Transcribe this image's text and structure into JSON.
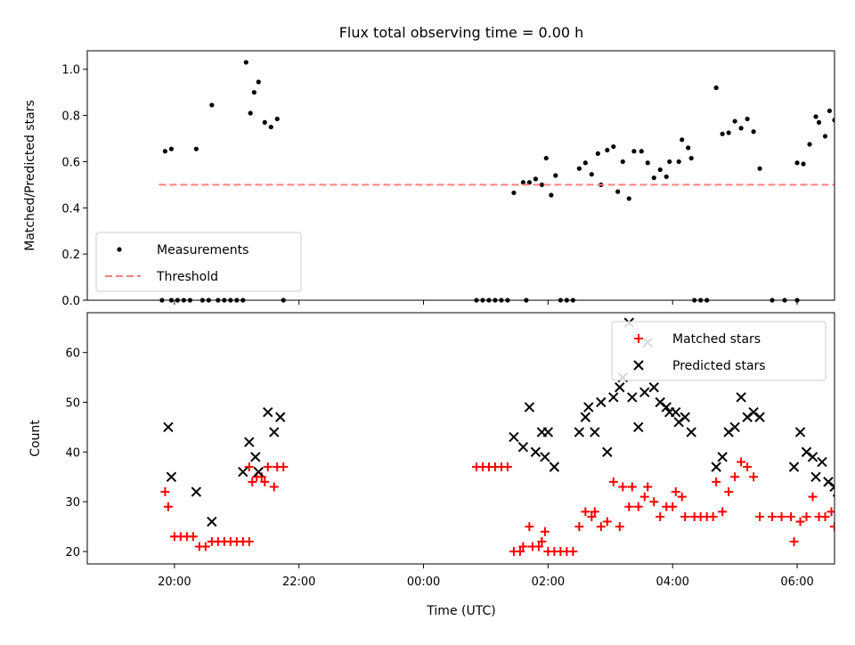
{
  "chart_data": {
    "title": "Flux total observing time = 0.00 h",
    "xlabel": "Time (UTC)",
    "x_ticks": [
      "20:00",
      "22:00",
      "00:00",
      "02:00",
      "04:00",
      "06:00"
    ],
    "x_tick_hours": [
      20,
      22,
      24,
      26,
      28,
      30
    ],
    "xlim_hours": [
      18.6,
      30.6
    ],
    "panels": [
      {
        "type": "scatter",
        "ylabel": "Matched/Predicted stars",
        "ylim": [
          0,
          1.08
        ],
        "y_ticks": [
          "0.0",
          "0.2",
          "0.4",
          "0.6",
          "0.8",
          "1.0"
        ],
        "y_tick_values": [
          0,
          0.2,
          0.4,
          0.6,
          0.8,
          1.0
        ],
        "legend_position": "lower-left",
        "series": [
          {
            "name": "Measurements",
            "color": "#000000",
            "marker": "dot",
            "points": [
              [
                19.85,
                0.645
              ],
              [
                19.95,
                0.655
              ],
              [
                20.35,
                0.655
              ],
              [
                20.6,
                0.845
              ],
              [
                21.15,
                1.03
              ],
              [
                21.22,
                0.81
              ],
              [
                21.28,
                0.9
              ],
              [
                21.35,
                0.945
              ],
              [
                21.45,
                0.77
              ],
              [
                21.55,
                0.75
              ],
              [
                21.65,
                0.785
              ],
              [
                19.8,
                0.0
              ],
              [
                19.95,
                0.0
              ],
              [
                20.05,
                0.0
              ],
              [
                20.15,
                0.0
              ],
              [
                20.25,
                0.0
              ],
              [
                20.45,
                0.0
              ],
              [
                20.55,
                0.0
              ],
              [
                20.7,
                0.0
              ],
              [
                20.8,
                0.0
              ],
              [
                20.9,
                0.0
              ],
              [
                21.0,
                0.0
              ],
              [
                21.1,
                0.0
              ],
              [
                21.75,
                0.0
              ],
              [
                24.85,
                0.0
              ],
              [
                24.95,
                0.0
              ],
              [
                25.05,
                0.0
              ],
              [
                25.15,
                0.0
              ],
              [
                25.25,
                0.0
              ],
              [
                25.35,
                0.0
              ],
              [
                25.65,
                0.0
              ],
              [
                25.45,
                0.465
              ],
              [
                25.6,
                0.51
              ],
              [
                25.7,
                0.51
              ],
              [
                25.8,
                0.525
              ],
              [
                25.9,
                0.5
              ],
              [
                25.97,
                0.615
              ],
              [
                26.05,
                0.455
              ],
              [
                26.12,
                0.54
              ],
              [
                26.2,
                0.0
              ],
              [
                26.3,
                0.0
              ],
              [
                26.4,
                0.0
              ],
              [
                26.5,
                0.57
              ],
              [
                26.6,
                0.595
              ],
              [
                26.7,
                0.545
              ],
              [
                26.8,
                0.635
              ],
              [
                26.85,
                0.5
              ],
              [
                26.95,
                0.65
              ],
              [
                27.05,
                0.665
              ],
              [
                27.12,
                0.47
              ],
              [
                27.2,
                0.6
              ],
              [
                27.3,
                0.44
              ],
              [
                27.38,
                0.645
              ],
              [
                27.5,
                0.645
              ],
              [
                27.6,
                0.595
              ],
              [
                27.7,
                0.53
              ],
              [
                27.8,
                0.565
              ],
              [
                27.9,
                0.535
              ],
              [
                27.95,
                0.6
              ],
              [
                28.1,
                0.6
              ],
              [
                28.15,
                0.695
              ],
              [
                28.25,
                0.66
              ],
              [
                28.3,
                0.615
              ],
              [
                28.35,
                0.0
              ],
              [
                28.45,
                0.0
              ],
              [
                28.55,
                0.0
              ],
              [
                28.7,
                0.92
              ],
              [
                28.8,
                0.72
              ],
              [
                28.9,
                0.725
              ],
              [
                29.0,
                0.775
              ],
              [
                29.1,
                0.745
              ],
              [
                29.2,
                0.785
              ],
              [
                29.3,
                0.73
              ],
              [
                29.4,
                0.57
              ],
              [
                29.6,
                0.0
              ],
              [
                29.8,
                0.0
              ],
              [
                30.0,
                0.0
              ],
              [
                30.0,
                0.595
              ],
              [
                30.1,
                0.59
              ],
              [
                30.2,
                0.675
              ],
              [
                30.3,
                0.795
              ],
              [
                30.35,
                0.77
              ],
              [
                30.45,
                0.71
              ],
              [
                30.52,
                0.82
              ],
              [
                30.6,
                0.78
              ],
              [
                30.78,
                0.625
              ],
              [
                30.7,
                0.0
              ],
              [
                30.8,
                0.0
              ]
            ]
          },
          {
            "name": "Threshold",
            "color": "#ff7f7f",
            "style": "dashed",
            "points": [
              [
                19.75,
                0.5
              ],
              [
                30.8,
                0.5
              ]
            ]
          }
        ]
      },
      {
        "type": "scatter",
        "ylabel": "Count",
        "ylim": [
          17.5,
          68
        ],
        "y_ticks": [
          "20",
          "30",
          "40",
          "50",
          "60"
        ],
        "y_tick_values": [
          20,
          30,
          40,
          50,
          60
        ],
        "legend_position": "top-right",
        "series": [
          {
            "name": "Matched stars",
            "color": "#ff0000",
            "marker": "plus",
            "points": [
              [
                19.85,
                32
              ],
              [
                19.9,
                29
              ],
              [
                20.0,
                23
              ],
              [
                20.1,
                23
              ],
              [
                20.2,
                23
              ],
              [
                20.3,
                23
              ],
              [
                20.4,
                21
              ],
              [
                20.5,
                21
              ],
              [
                20.6,
                22
              ],
              [
                20.7,
                22
              ],
              [
                20.8,
                22
              ],
              [
                20.9,
                22
              ],
              [
                21.0,
                22
              ],
              [
                21.1,
                22
              ],
              [
                21.2,
                22
              ],
              [
                21.2,
                37
              ],
              [
                21.25,
                34
              ],
              [
                21.32,
                35
              ],
              [
                21.4,
                35
              ],
              [
                21.45,
                34
              ],
              [
                21.5,
                37
              ],
              [
                21.6,
                33
              ],
              [
                21.65,
                37
              ],
              [
                21.75,
                37
              ],
              [
                24.85,
                37
              ],
              [
                24.95,
                37
              ],
              [
                25.05,
                37
              ],
              [
                25.15,
                37
              ],
              [
                25.25,
                37
              ],
              [
                25.35,
                37
              ],
              [
                25.45,
                20
              ],
              [
                25.55,
                20
              ],
              [
                25.6,
                21
              ],
              [
                25.7,
                25
              ],
              [
                25.75,
                21
              ],
              [
                25.85,
                21
              ],
              [
                25.9,
                22
              ],
              [
                25.95,
                24
              ],
              [
                26.0,
                20
              ],
              [
                26.1,
                20
              ],
              [
                26.2,
                20
              ],
              [
                26.3,
                20
              ],
              [
                26.4,
                20
              ],
              [
                26.5,
                25
              ],
              [
                26.6,
                28
              ],
              [
                26.7,
                27
              ],
              [
                26.75,
                28
              ],
              [
                26.85,
                25
              ],
              [
                26.95,
                26
              ],
              [
                27.05,
                34
              ],
              [
                27.15,
                25
              ],
              [
                27.2,
                33
              ],
              [
                27.3,
                29
              ],
              [
                27.35,
                33
              ],
              [
                27.45,
                29
              ],
              [
                27.55,
                31
              ],
              [
                27.6,
                33
              ],
              [
                27.7,
                30
              ],
              [
                27.8,
                27
              ],
              [
                27.9,
                29
              ],
              [
                28.0,
                29
              ],
              [
                28.05,
                32
              ],
              [
                28.15,
                31
              ],
              [
                28.2,
                27
              ],
              [
                28.35,
                27
              ],
              [
                28.45,
                27
              ],
              [
                28.55,
                27
              ],
              [
                28.65,
                27
              ],
              [
                28.7,
                34
              ],
              [
                28.8,
                28
              ],
              [
                28.9,
                32
              ],
              [
                29.0,
                35
              ],
              [
                29.1,
                38
              ],
              [
                29.2,
                37
              ],
              [
                29.3,
                35
              ],
              [
                29.4,
                27
              ],
              [
                29.6,
                27
              ],
              [
                29.75,
                27
              ],
              [
                29.9,
                27
              ],
              [
                29.95,
                22
              ],
              [
                30.05,
                26
              ],
              [
                30.15,
                27
              ],
              [
                30.25,
                31
              ],
              [
                30.35,
                27
              ],
              [
                30.45,
                27
              ],
              [
                30.55,
                28
              ],
              [
                30.6,
                25
              ],
              [
                30.7,
                25
              ],
              [
                30.8,
                20
              ],
              [
                30.85,
                20
              ]
            ]
          },
          {
            "name": "Predicted stars",
            "color": "#000000",
            "marker": "x",
            "points": [
              [
                19.9,
                45
              ],
              [
                19.95,
                35
              ],
              [
                20.35,
                32
              ],
              [
                20.6,
                26
              ],
              [
                21.1,
                36
              ],
              [
                21.2,
                42
              ],
              [
                21.3,
                39
              ],
              [
                21.35,
                36
              ],
              [
                21.5,
                48
              ],
              [
                21.6,
                44
              ],
              [
                21.7,
                47
              ],
              [
                25.45,
                43
              ],
              [
                25.6,
                41
              ],
              [
                25.7,
                49
              ],
              [
                25.8,
                40
              ],
              [
                25.9,
                44
              ],
              [
                25.95,
                39
              ],
              [
                26.0,
                44
              ],
              [
                26.1,
                37
              ],
              [
                26.5,
                44
              ],
              [
                26.6,
                47
              ],
              [
                26.65,
                49
              ],
              [
                26.75,
                44
              ],
              [
                26.85,
                50
              ],
              [
                26.95,
                40
              ],
              [
                27.05,
                51
              ],
              [
                27.15,
                53
              ],
              [
                27.2,
                55
              ],
              [
                27.3,
                66
              ],
              [
                27.35,
                51
              ],
              [
                27.45,
                45
              ],
              [
                27.55,
                52
              ],
              [
                27.6,
                62
              ],
              [
                27.7,
                53
              ],
              [
                27.8,
                50
              ],
              [
                27.9,
                49
              ],
              [
                27.95,
                48
              ],
              [
                28.05,
                48
              ],
              [
                28.1,
                46
              ],
              [
                28.2,
                47
              ],
              [
                28.3,
                44
              ],
              [
                28.7,
                37
              ],
              [
                28.8,
                39
              ],
              [
                28.9,
                44
              ],
              [
                29.0,
                45
              ],
              [
                29.1,
                51
              ],
              [
                29.2,
                47
              ],
              [
                29.3,
                48
              ],
              [
                29.4,
                47
              ],
              [
                29.95,
                37
              ],
              [
                30.05,
                44
              ],
              [
                30.15,
                40
              ],
              [
                30.25,
                39
              ],
              [
                30.3,
                35
              ],
              [
                30.4,
                38
              ],
              [
                30.5,
                34
              ],
              [
                30.6,
                33
              ],
              [
                30.65,
                32
              ],
              [
                30.75,
                32
              ]
            ]
          }
        ]
      }
    ]
  }
}
